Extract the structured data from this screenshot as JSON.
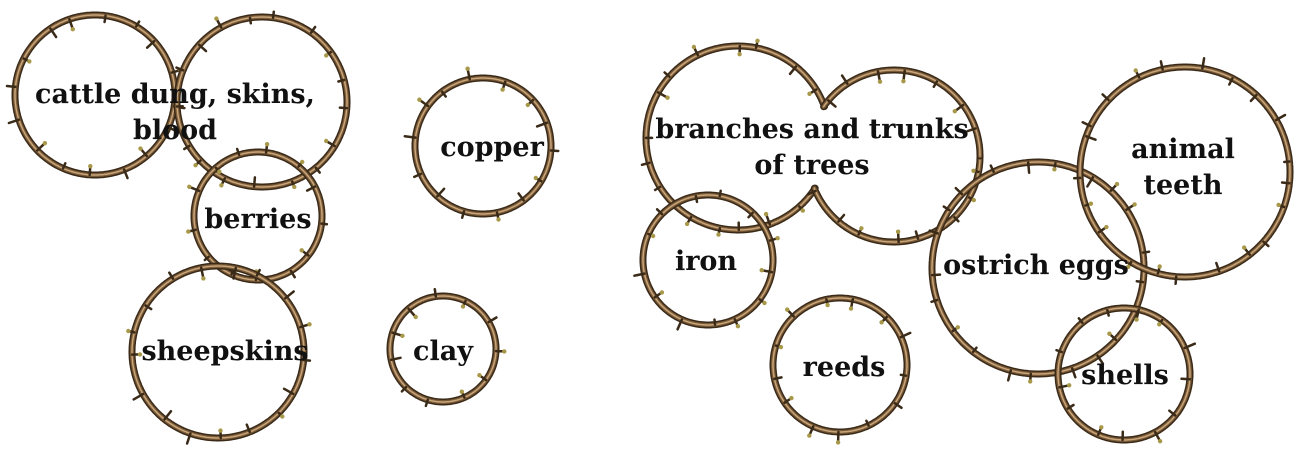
{
  "colors": {
    "ring_dark": "#3a2a18",
    "ring_mid": "#7a5a38",
    "ring_light": "#c8a67a",
    "bud": "#a8984a",
    "text": "#111111"
  },
  "labels": {
    "cattle": "cattle dung, skins,\nblood",
    "berries": "berries",
    "sheepskins": "sheepskins",
    "copper": "copper",
    "clay": "clay",
    "branches": "branches and trunks\nof trees",
    "iron": "iron",
    "reeds": "reeds",
    "ostrich": "ostrich eggs",
    "animal_teeth": "animal\nteeth",
    "shells": "shells"
  }
}
